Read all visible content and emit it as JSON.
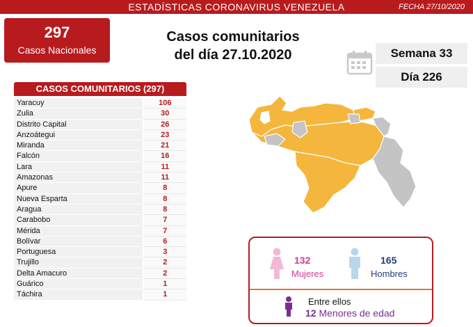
{
  "header": {
    "title": "ESTADÍSTICAS CORONAVIRUS VENEZUELA",
    "date": "FECHA 27/10/2020"
  },
  "national": {
    "count": "297",
    "label": "Casos Nacionales"
  },
  "heading": {
    "line1": "Casos comunitarios",
    "line2": "del día 27.10.2020"
  },
  "week": "Semana 33",
  "day": "Día 226",
  "table": {
    "header": "CASOS COMUNITARIOS (297)",
    "rows": [
      {
        "state": "Yaracuy",
        "value": "106"
      },
      {
        "state": "Zulia",
        "value": "30"
      },
      {
        "state": "Distrito Capital",
        "value": "26"
      },
      {
        "state": "Anzoátegui",
        "value": "23"
      },
      {
        "state": "Miranda",
        "value": "21"
      },
      {
        "state": "Falcón",
        "value": "16"
      },
      {
        "state": "Lara",
        "value": "11"
      },
      {
        "state": "Amazonas",
        "value": "11"
      },
      {
        "state": "Apure",
        "value": "8"
      },
      {
        "state": "Nueva Esparta",
        "value": "8"
      },
      {
        "state": "Aragua",
        "value": "8"
      },
      {
        "state": "Carabobo",
        "value": "7"
      },
      {
        "state": "Mérida",
        "value": "7"
      },
      {
        "state": "Bolívar",
        "value": "6"
      },
      {
        "state": "Portuguesa",
        "value": "3"
      },
      {
        "state": "Trujillo",
        "value": "2"
      },
      {
        "state": "Delta Amacuro",
        "value": "2"
      },
      {
        "state": "Guárico",
        "value": "1"
      },
      {
        "state": "Táchira",
        "value": "1"
      }
    ]
  },
  "gender": {
    "women_count": "132",
    "women_label": "Mujeres",
    "men_count": "165",
    "men_label": "Hombres",
    "minors_intro": "Entre ellos",
    "minors_count": "12",
    "minors_label": "Menores de edad"
  },
  "colors": {
    "brand_red": "#b81b1e",
    "map_affected": "#f4b63c",
    "map_unaffected": "#c4c4c4",
    "women": "#d23a97",
    "men": "#1f3f7a",
    "minors": "#7a2f8f"
  },
  "icons": {
    "calendar": "calendar-icon",
    "woman": "woman-icon",
    "man": "man-icon",
    "child": "child-icon"
  }
}
